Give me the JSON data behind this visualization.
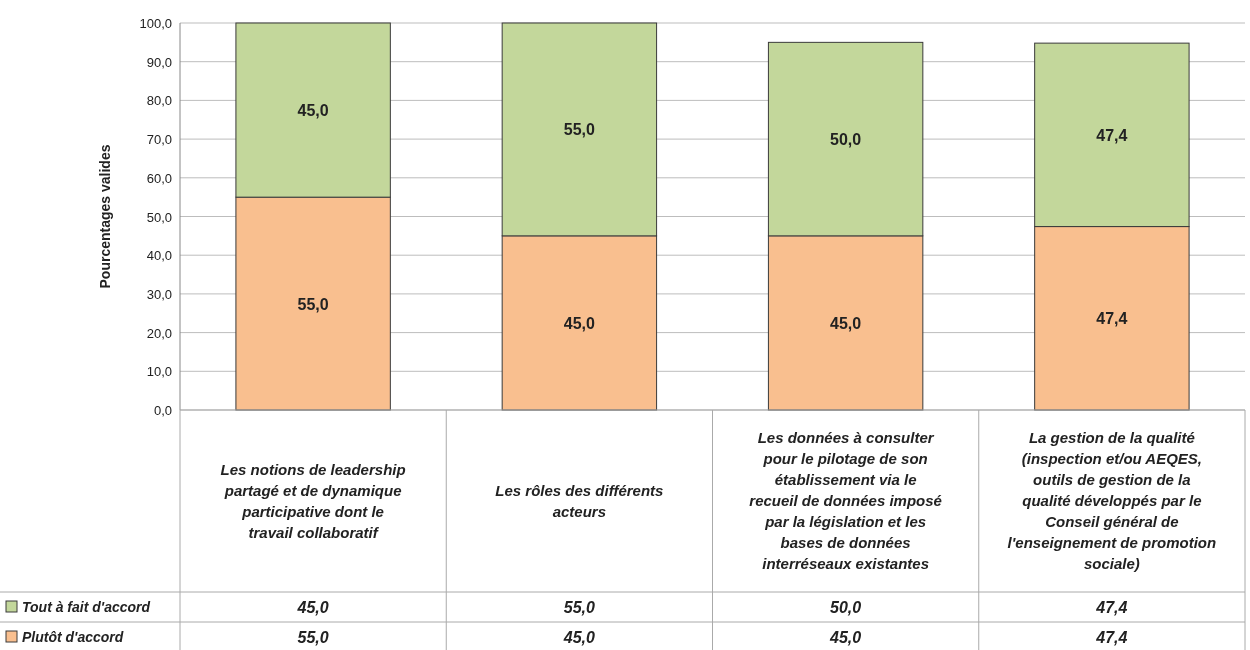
{
  "chart_data": {
    "type": "bar",
    "stacked": true,
    "ylabel": "Pourcentages valides",
    "categories": [
      "Les notions de leadership partagé et de dynamique participative dont le travail collaboratif",
      "Les rôles des différents acteurs",
      "Les données à consulter pour le pilotage de son établissement via le recueil de données imposé par la législation et les bases de données interréseaux existantes",
      "La gestion de la qualité (inspection et/ou AEQES, outils de gestion de la qualité développés par le Conseil général de l'enseignement de promotion sociale)"
    ],
    "series": [
      {
        "name": "Plutôt d'accord",
        "color": "#f9bf8f",
        "values": [
          55.0,
          45.0,
          45.0,
          47.4
        ],
        "value_labels": [
          "55,0",
          "45,0",
          "45,0",
          "47,4"
        ]
      },
      {
        "name": "Tout à fait d'accord",
        "color": "#c3d79b",
        "values": [
          45.0,
          55.0,
          50.0,
          47.4
        ],
        "value_labels": [
          "45,0",
          "55,0",
          "50,0",
          "47,4"
        ]
      }
    ],
    "ylim": [
      0,
      100
    ],
    "yticks": [
      {
        "value": 0,
        "label": "0,0"
      },
      {
        "value": 10,
        "label": "10,0"
      },
      {
        "value": 20,
        "label": "20,0"
      },
      {
        "value": 30,
        "label": "30,0"
      },
      {
        "value": 40,
        "label": "40,0"
      },
      {
        "value": 50,
        "label": "50,0"
      },
      {
        "value": 60,
        "label": "60,0"
      },
      {
        "value": 70,
        "label": "70,0"
      },
      {
        "value": 80,
        "label": "80,0"
      },
      {
        "value": 90,
        "label": "90,0"
      },
      {
        "value": 100,
        "label": "100,0"
      }
    ],
    "grid": "y",
    "legend": "bottom",
    "data_labels": true
  }
}
